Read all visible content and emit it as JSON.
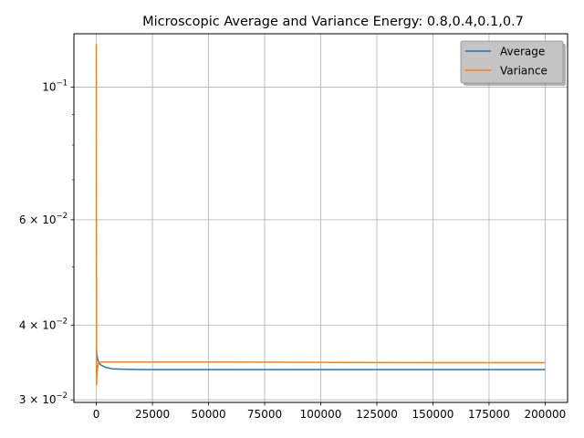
{
  "chart_data": {
    "type": "line",
    "title": "Microscopic Average and Variance Energy: 0.8,0.4,0.1,0.7",
    "xlabel": "",
    "ylabel": "",
    "xlim": [
      -10000,
      210000
    ],
    "ylim": [
      0.0297,
      0.1228
    ],
    "yscale": "log",
    "grid": true,
    "legend_position": "top-right",
    "x_ticks": [
      "0",
      "25000",
      "50000",
      "75000",
      "100000",
      "125000",
      "150000",
      "175000",
      "200000"
    ],
    "x_tick_values": [
      0,
      25000,
      50000,
      75000,
      100000,
      125000,
      150000,
      175000,
      200000
    ],
    "y_tick_labels": [
      {
        "value": 0.1,
        "base": "10",
        "exp": "−1",
        "mant": ""
      },
      {
        "value": 0.06,
        "base": "10",
        "exp": "−2",
        "mant": "6 × "
      },
      {
        "value": 0.04,
        "base": "10",
        "exp": "−2",
        "mant": "4 × "
      },
      {
        "value": 0.03,
        "base": "10",
        "exp": "−2",
        "mant": "3 × "
      }
    ],
    "series": [
      {
        "name": "Average",
        "color": "#1f77b4",
        "points": [
          [
            0,
            0.0365
          ],
          [
            200,
            0.0358
          ],
          [
            500,
            0.0352
          ],
          [
            1000,
            0.0347
          ],
          [
            2000,
            0.0343
          ],
          [
            4000,
            0.034
          ],
          [
            7000,
            0.0338
          ],
          [
            12000,
            0.03375
          ],
          [
            20000,
            0.0337
          ],
          [
            40000,
            0.0337
          ],
          [
            70000,
            0.0337
          ],
          [
            100000,
            0.0337
          ],
          [
            150000,
            0.0337
          ],
          [
            200000,
            0.0337
          ]
        ]
      },
      {
        "name": "Variance",
        "color": "#ff7f0e",
        "points": [
          [
            0,
            0.118
          ],
          [
            50,
            0.05
          ],
          [
            100,
            0.0318
          ],
          [
            200,
            0.0328
          ],
          [
            400,
            0.0335
          ],
          [
            700,
            0.0342
          ],
          [
            1000,
            0.0346
          ],
          [
            2000,
            0.0347
          ],
          [
            10000,
            0.0347
          ],
          [
            50000,
            0.0347
          ],
          [
            100000,
            0.03465
          ],
          [
            150000,
            0.0346
          ],
          [
            200000,
            0.0346
          ]
        ]
      }
    ]
  }
}
